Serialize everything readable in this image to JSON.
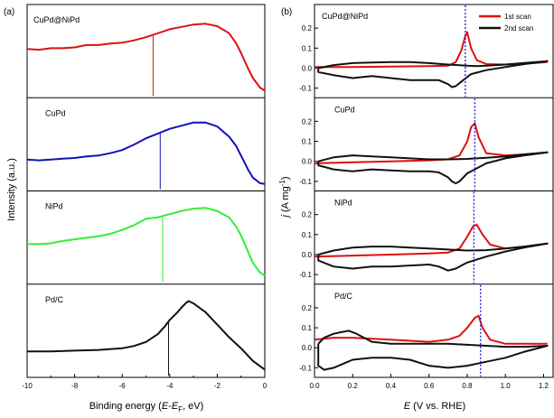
{
  "figure": {
    "panel_a_tag": "(a)",
    "panel_b_tag": "(b)"
  },
  "panel_a": {
    "ylabel": "Intensity (a.u.)",
    "xlabel_prefix": "Binding energy (",
    "xlabel_E": "E",
    "xlabel_minus": "-",
    "xlabel_EF": "E",
    "xlabel_F": "F",
    "xlabel_suffix": ", eV)",
    "xticks": [
      "-10",
      "-8",
      "-6",
      "-4",
      "-2",
      "0"
    ]
  },
  "panel_b": {
    "ylabel_j": "j",
    "ylabel_rest": " (A mg",
    "ylabel_sup": "-1",
    "ylabel_end": ")",
    "xlabel_E": "E",
    "xlabel_rest": " (V vs. RHE)",
    "xticks": [
      "0.0",
      "0.2",
      "0.4",
      "0.6",
      "0.8",
      "1.0",
      "1.2"
    ],
    "yticks": [
      "0.2",
      "0.1",
      "0.0",
      "-0.1"
    ],
    "legend": [
      "1st scan",
      "2nd scan"
    ]
  },
  "chart_data": [
    {
      "type": "line",
      "panel": "a",
      "xlabel": "Binding energy (E-EF, eV)",
      "ylabel": "Intensity (a.u.)",
      "xlim": [
        -10,
        0
      ],
      "ylim": [
        0,
        1
      ],
      "grid": false,
      "series": [
        {
          "name": "CuPd@NiPd",
          "color": "#dd1111",
          "marker_x": -4.7,
          "x": [
            -10,
            -9.5,
            -9,
            -8.5,
            -8,
            -7.5,
            -7,
            -6.5,
            -6,
            -5.5,
            -5,
            -4.5,
            -4,
            -3.5,
            -3,
            -2.5,
            -2,
            -1.5,
            -1.2,
            -1,
            -0.7,
            -0.5,
            -0.2,
            0
          ],
          "y": [
            0.55,
            0.54,
            0.56,
            0.56,
            0.57,
            0.6,
            0.6,
            0.62,
            0.63,
            0.66,
            0.7,
            0.75,
            0.8,
            0.83,
            0.86,
            0.87,
            0.84,
            0.75,
            0.62,
            0.5,
            0.3,
            0.18,
            0.06,
            0.02
          ]
        },
        {
          "name": "CuPd",
          "color": "#1111bb",
          "marker_x": -4.4,
          "x": [
            -10,
            -9.5,
            -9,
            -8.5,
            -8,
            -7.5,
            -7,
            -6.5,
            -6,
            -5.5,
            -5,
            -4.5,
            -4,
            -3.5,
            -3,
            -2.5,
            -2,
            -1.5,
            -1.2,
            -1,
            -0.7,
            -0.5,
            -0.2,
            0
          ],
          "y": [
            0.33,
            0.32,
            0.33,
            0.34,
            0.35,
            0.37,
            0.38,
            0.41,
            0.45,
            0.52,
            0.6,
            0.66,
            0.72,
            0.76,
            0.8,
            0.8,
            0.75,
            0.62,
            0.5,
            0.38,
            0.2,
            0.1,
            0.03,
            0.02
          ]
        },
        {
          "name": "NiPd",
          "color": "#33ee33",
          "marker_x": -4.3,
          "x": [
            -10,
            -9.5,
            -9,
            -8.5,
            -8,
            -7.5,
            -7,
            -6.5,
            -6,
            -5.5,
            -5,
            -4.5,
            -4,
            -3.5,
            -3,
            -2.5,
            -2,
            -1.5,
            -1.2,
            -1,
            -0.7,
            -0.5,
            -0.2,
            0
          ],
          "y": [
            0.44,
            0.44,
            0.45,
            0.48,
            0.5,
            0.52,
            0.54,
            0.57,
            0.62,
            0.68,
            0.76,
            0.78,
            0.82,
            0.86,
            0.89,
            0.9,
            0.86,
            0.78,
            0.66,
            0.55,
            0.34,
            0.2,
            0.08,
            0.04
          ]
        },
        {
          "name": "Pd/C",
          "color": "#111111",
          "marker_x": -4.05,
          "x": [
            -10,
            -9,
            -8,
            -7,
            -6,
            -5.5,
            -5,
            -4.5,
            -4.2,
            -4,
            -3.7,
            -3.5,
            -3.3,
            -3.2,
            -3,
            -2.5,
            -2,
            -1.5,
            -1,
            -0.5,
            0
          ],
          "y": [
            0.26,
            0.26,
            0.27,
            0.28,
            0.3,
            0.33,
            0.38,
            0.48,
            0.58,
            0.66,
            0.75,
            0.82,
            0.88,
            0.9,
            0.87,
            0.76,
            0.6,
            0.44,
            0.3,
            0.14,
            0.03
          ]
        }
      ]
    },
    {
      "type": "line",
      "panel": "b",
      "xlabel": "E (V vs. RHE)",
      "ylabel": "j (A mg-1)",
      "xlim": [
        0,
        1.25
      ],
      "ylim": [
        -0.13,
        0.3
      ],
      "grid": false,
      "legend_position": "top-right",
      "subplots": [
        {
          "name": "CuPd@NiPd",
          "marker_x": 0.79,
          "series": [
            {
              "name": "1st scan",
              "color": "#dd1111",
              "x": [
                0,
                0.2,
                0.4,
                0.6,
                0.7,
                0.74,
                0.77,
                0.79,
                0.8,
                0.82,
                0.85,
                0.9,
                1.0,
                1.1,
                1.22
              ],
              "y": [
                0.005,
                0.005,
                0.008,
                0.01,
                0.012,
                0.03,
                0.09,
                0.16,
                0.18,
                0.1,
                0.04,
                0.02,
                0.018,
                0.022,
                0.03
              ]
            },
            {
              "name": "2nd scan",
              "color": "#111111",
              "x": [
                0.02,
                0.1,
                0.2,
                0.3,
                0.4,
                0.5,
                0.6,
                0.7,
                0.8,
                0.85,
                0.9,
                1.0,
                1.1,
                1.22,
                1.22,
                1.1,
                1.0,
                0.9,
                0.82,
                0.78,
                0.74,
                0.72,
                0.7,
                0.65,
                0.6,
                0.5,
                0.4,
                0.3,
                0.2,
                0.1,
                0.02,
                0.02
              ],
              "y": [
                0.0,
                0.015,
                0.025,
                0.028,
                0.03,
                0.03,
                0.025,
                0.018,
                0.012,
                0.01,
                0.012,
                0.018,
                0.026,
                0.035,
                0.035,
                0.02,
                0.005,
                -0.01,
                -0.03,
                -0.06,
                -0.09,
                -0.095,
                -0.08,
                -0.06,
                -0.06,
                -0.06,
                -0.05,
                -0.04,
                -0.05,
                -0.035,
                -0.02,
                0.0
              ]
            }
          ]
        },
        {
          "name": "CuPd",
          "marker_x": 0.84,
          "series": [
            {
              "name": "1st scan",
              "color": "#dd1111",
              "x": [
                0,
                0.2,
                0.4,
                0.6,
                0.7,
                0.76,
                0.8,
                0.82,
                0.84,
                0.86,
                0.9,
                1.0,
                1.1,
                1.22
              ],
              "y": [
                -0.01,
                -0.005,
                0.0,
                0.005,
                0.01,
                0.03,
                0.1,
                0.17,
                0.19,
                0.12,
                0.04,
                0.03,
                0.035,
                0.045
              ]
            },
            {
              "name": "2nd scan",
              "color": "#111111",
              "x": [
                0.02,
                0.1,
                0.2,
                0.3,
                0.4,
                0.5,
                0.6,
                0.7,
                0.8,
                0.9,
                1.0,
                1.1,
                1.22,
                1.22,
                1.1,
                1.0,
                0.9,
                0.8,
                0.76,
                0.74,
                0.72,
                0.7,
                0.65,
                0.6,
                0.5,
                0.4,
                0.3,
                0.2,
                0.1,
                0.02,
                0.02
              ],
              "y": [
                0.0,
                0.02,
                0.03,
                0.025,
                0.02,
                0.015,
                0.01,
                0.01,
                0.012,
                0.018,
                0.025,
                0.035,
                0.045,
                0.045,
                0.03,
                0.015,
                -0.01,
                -0.06,
                -0.1,
                -0.11,
                -0.1,
                -0.08,
                -0.055,
                -0.05,
                -0.05,
                -0.045,
                -0.04,
                -0.05,
                -0.04,
                -0.02,
                0.0
              ]
            }
          ]
        },
        {
          "name": "NiPd",
          "marker_x": 0.835,
          "series": [
            {
              "name": "1st scan",
              "color": "#dd1111",
              "x": [
                0,
                0.2,
                0.4,
                0.6,
                0.7,
                0.76,
                0.8,
                0.83,
                0.85,
                0.88,
                0.92,
                1.0,
                1.1,
                1.22
              ],
              "y": [
                -0.01,
                -0.005,
                0.0,
                0.005,
                0.01,
                0.03,
                0.09,
                0.14,
                0.15,
                0.1,
                0.05,
                0.03,
                0.04,
                0.055
              ]
            },
            {
              "name": "2nd scan",
              "color": "#111111",
              "x": [
                0.02,
                0.1,
                0.2,
                0.3,
                0.4,
                0.5,
                0.6,
                0.7,
                0.8,
                0.9,
                1.0,
                1.1,
                1.22,
                1.22,
                1.1,
                1.0,
                0.9,
                0.8,
                0.74,
                0.7,
                0.65,
                0.6,
                0.5,
                0.4,
                0.3,
                0.2,
                0.1,
                0.02,
                0.02
              ],
              "y": [
                0.0,
                0.02,
                0.035,
                0.04,
                0.04,
                0.035,
                0.03,
                0.025,
                0.02,
                0.022,
                0.03,
                0.04,
                0.055,
                0.055,
                0.035,
                0.015,
                -0.01,
                -0.04,
                -0.07,
                -0.08,
                -0.06,
                -0.05,
                -0.055,
                -0.06,
                -0.06,
                -0.07,
                -0.06,
                -0.03,
                0.0
              ]
            }
          ]
        },
        {
          "name": "Pd/C",
          "marker_x": 0.87,
          "series": [
            {
              "name": "1st scan",
              "color": "#dd1111",
              "x": [
                0,
                0.1,
                0.2,
                0.4,
                0.6,
                0.7,
                0.76,
                0.8,
                0.84,
                0.86,
                0.88,
                0.92,
                1.0,
                1.1,
                1.22
              ],
              "y": [
                0.04,
                0.05,
                0.05,
                0.04,
                0.03,
                0.04,
                0.06,
                0.1,
                0.15,
                0.16,
                0.1,
                0.04,
                0.02,
                0.02,
                0.02
              ]
            },
            {
              "name": "2nd scan",
              "color": "#111111",
              "x": [
                0.02,
                0.05,
                0.1,
                0.15,
                0.18,
                0.22,
                0.3,
                0.4,
                0.5,
                0.6,
                0.7,
                0.8,
                0.9,
                1.0,
                1.1,
                1.22,
                1.22,
                1.1,
                1.0,
                0.9,
                0.8,
                0.7,
                0.6,
                0.5,
                0.4,
                0.3,
                0.2,
                0.15,
                0.1,
                0.05,
                0.02,
                0.02
              ],
              "y": [
                0.02,
                0.05,
                0.07,
                0.08,
                0.085,
                0.07,
                0.03,
                0.02,
                0.02,
                0.02,
                0.02,
                0.015,
                0.01,
                0.005,
                0.005,
                0.01,
                0.01,
                -0.02,
                -0.05,
                -0.07,
                -0.09,
                -0.1,
                -0.09,
                -0.06,
                -0.05,
                -0.05,
                -0.06,
                -0.08,
                -0.1,
                -0.11,
                -0.09,
                0.02
              ]
            }
          ]
        }
      ]
    }
  ]
}
